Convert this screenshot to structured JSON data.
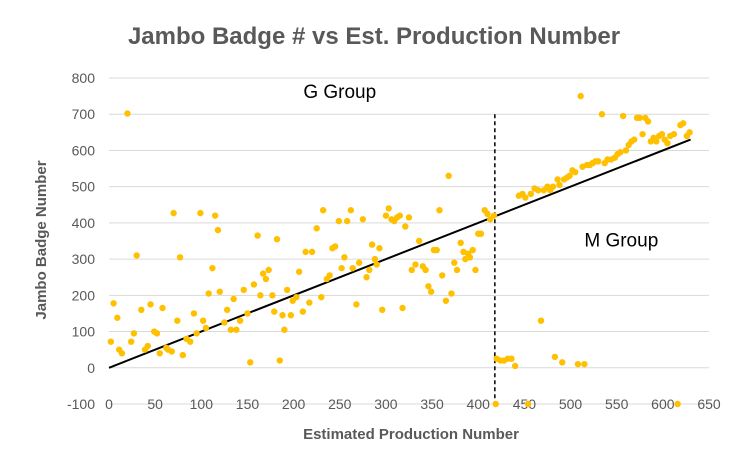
{
  "chart_data": {
    "type": "scatter",
    "title": "Jambo Badge # vs Est. Production Number",
    "xlabel": "Estimated Production Number",
    "ylabel": "Jambo Badge Number",
    "xlim": [
      0,
      650
    ],
    "ylim": [
      -100,
      800
    ],
    "x_ticks": [
      0,
      50,
      100,
      150,
      200,
      250,
      300,
      350,
      400,
      450,
      500,
      550,
      600,
      650
    ],
    "y_ticks": [
      -100,
      0,
      100,
      200,
      300,
      400,
      500,
      600,
      700,
      800
    ],
    "grid": "horizontal",
    "legend": "none",
    "colors": {
      "points": "#FFC000",
      "trendline": "#000000",
      "divider": "#000000",
      "gridline": "#d9d9d9"
    },
    "annotations": [
      {
        "text": "G Group",
        "x": 250,
        "y": 745
      },
      {
        "text": "M Group",
        "x": 555,
        "y": 335
      }
    ],
    "trendline": {
      "x": [
        0,
        630
      ],
      "y": [
        0,
        630
      ],
      "style": "solid"
    },
    "divider": {
      "x": 418,
      "style": "dashed"
    },
    "points": [
      [
        2,
        72
      ],
      [
        5,
        178
      ],
      [
        9,
        138
      ],
      [
        11,
        50
      ],
      [
        14,
        40
      ],
      [
        20,
        702
      ],
      [
        24,
        72
      ],
      [
        27,
        95
      ],
      [
        30,
        310
      ],
      [
        35,
        160
      ],
      [
        39,
        50
      ],
      [
        42,
        60
      ],
      [
        45,
        175
      ],
      [
        49,
        100
      ],
      [
        52,
        95
      ],
      [
        55,
        40
      ],
      [
        58,
        165
      ],
      [
        62,
        55
      ],
      [
        64,
        50
      ],
      [
        68,
        45
      ],
      [
        70,
        427
      ],
      [
        74,
        130
      ],
      [
        77,
        305
      ],
      [
        80,
        35
      ],
      [
        84,
        80
      ],
      [
        88,
        72
      ],
      [
        92,
        150
      ],
      [
        95,
        95
      ],
      [
        99,
        427
      ],
      [
        102,
        130
      ],
      [
        105,
        110
      ],
      [
        108,
        205
      ],
      [
        112,
        275
      ],
      [
        115,
        420
      ],
      [
        118,
        380
      ],
      [
        120,
        210
      ],
      [
        125,
        125
      ],
      [
        128,
        160
      ],
      [
        132,
        105
      ],
      [
        135,
        190
      ],
      [
        138,
        105
      ],
      [
        142,
        130
      ],
      [
        146,
        215
      ],
      [
        150,
        150
      ],
      [
        153,
        15
      ],
      [
        157,
        230
      ],
      [
        161,
        365
      ],
      [
        164,
        200
      ],
      [
        167,
        260
      ],
      [
        170,
        245
      ],
      [
        173,
        270
      ],
      [
        177,
        200
      ],
      [
        179,
        155
      ],
      [
        182,
        355
      ],
      [
        185,
        20
      ],
      [
        188,
        145
      ],
      [
        190,
        105
      ],
      [
        193,
        215
      ],
      [
        197,
        145
      ],
      [
        199,
        185
      ],
      [
        203,
        195
      ],
      [
        206,
        265
      ],
      [
        210,
        155
      ],
      [
        213,
        320
      ],
      [
        217,
        180
      ],
      [
        220,
        320
      ],
      [
        225,
        385
      ],
      [
        230,
        195
      ],
      [
        232,
        435
      ],
      [
        236,
        245
      ],
      [
        239,
        255
      ],
      [
        242,
        330
      ],
      [
        245,
        335
      ],
      [
        249,
        405
      ],
      [
        252,
        275
      ],
      [
        255,
        305
      ],
      [
        258,
        405
      ],
      [
        262,
        435
      ],
      [
        264,
        275
      ],
      [
        268,
        175
      ],
      [
        271,
        290
      ],
      [
        275,
        410
      ],
      [
        279,
        250
      ],
      [
        282,
        270
      ],
      [
        285,
        340
      ],
      [
        288,
        300
      ],
      [
        290,
        285
      ],
      [
        293,
        330
      ],
      [
        296,
        160
      ],
      [
        300,
        420
      ],
      [
        303,
        440
      ],
      [
        306,
        410
      ],
      [
        309,
        405
      ],
      [
        312,
        415
      ],
      [
        315,
        420
      ],
      [
        318,
        165
      ],
      [
        321,
        390
      ],
      [
        325,
        415
      ],
      [
        328,
        270
      ],
      [
        332,
        285
      ],
      [
        336,
        350
      ],
      [
        340,
        280
      ],
      [
        343,
        270
      ],
      [
        346,
        225
      ],
      [
        349,
        210
      ],
      [
        352,
        325
      ],
      [
        355,
        325
      ],
      [
        358,
        435
      ],
      [
        361,
        255
      ],
      [
        365,
        185
      ],
      [
        368,
        530
      ],
      [
        371,
        205
      ],
      [
        374,
        290
      ],
      [
        377,
        270
      ],
      [
        381,
        345
      ],
      [
        384,
        320
      ],
      [
        386,
        300
      ],
      [
        389,
        315
      ],
      [
        391,
        305
      ],
      [
        394,
        325
      ],
      [
        397,
        270
      ],
      [
        400,
        370
      ],
      [
        403,
        370
      ],
      [
        407,
        435
      ],
      [
        410,
        425
      ],
      [
        413,
        410
      ],
      [
        417,
        420
      ],
      [
        419,
        -100
      ],
      [
        420,
        25
      ],
      [
        424,
        20
      ],
      [
        428,
        20
      ],
      [
        432,
        25
      ],
      [
        436,
        25
      ],
      [
        440,
        5
      ],
      [
        444,
        475
      ],
      [
        448,
        480
      ],
      [
        451,
        470
      ],
      [
        454,
        -100
      ],
      [
        457,
        480
      ],
      [
        461,
        495
      ],
      [
        465,
        490
      ],
      [
        468,
        130
      ],
      [
        471,
        490
      ],
      [
        475,
        500
      ],
      [
        478,
        490
      ],
      [
        481,
        500
      ],
      [
        483,
        30
      ],
      [
        486,
        520
      ],
      [
        488,
        505
      ],
      [
        491,
        15
      ],
      [
        493,
        520
      ],
      [
        496,
        525
      ],
      [
        499,
        530
      ],
      [
        502,
        545
      ],
      [
        505,
        540
      ],
      [
        508,
        10
      ],
      [
        511,
        750
      ],
      [
        513,
        555
      ],
      [
        515,
        10
      ],
      [
        518,
        560
      ],
      [
        521,
        560
      ],
      [
        524,
        565
      ],
      [
        527,
        570
      ],
      [
        530,
        570
      ],
      [
        534,
        700
      ],
      [
        537,
        565
      ],
      [
        540,
        575
      ],
      [
        544,
        575
      ],
      [
        548,
        580
      ],
      [
        551,
        590
      ],
      [
        554,
        595
      ],
      [
        557,
        695
      ],
      [
        560,
        600
      ],
      [
        563,
        615
      ],
      [
        566,
        625
      ],
      [
        569,
        630
      ],
      [
        572,
        690
      ],
      [
        575,
        690
      ],
      [
        578,
        645
      ],
      [
        581,
        690
      ],
      [
        584,
        680
      ],
      [
        587,
        625
      ],
      [
        590,
        635
      ],
      [
        593,
        625
      ],
      [
        596,
        640
      ],
      [
        599,
        645
      ],
      [
        602,
        630
      ],
      [
        605,
        620
      ],
      [
        608,
        640
      ],
      [
        612,
        645
      ],
      [
        616,
        -100
      ],
      [
        619,
        670
      ],
      [
        622,
        675
      ],
      [
        626,
        640
      ],
      [
        629,
        650
      ]
    ]
  }
}
